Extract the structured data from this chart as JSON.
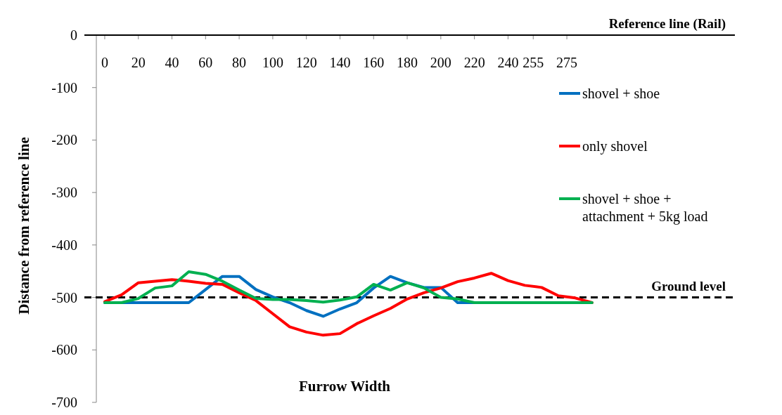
{
  "chart_data": {
    "type": "line",
    "xlabel": "Furrow Width",
    "ylabel": "Distance from reference line",
    "x": [
      0,
      10,
      20,
      30,
      40,
      50,
      60,
      70,
      80,
      90,
      100,
      110,
      120,
      130,
      140,
      150,
      160,
      170,
      180,
      190,
      200,
      210,
      220,
      230,
      240,
      250,
      260,
      270,
      280,
      290
    ],
    "xlim": [
      -5,
      375
    ],
    "xticks": [
      0,
      20,
      40,
      60,
      80,
      100,
      120,
      140,
      160,
      180,
      200,
      220,
      240,
      255,
      275
    ],
    "ylim": [
      -700,
      0
    ],
    "yticks": [
      0,
      -100,
      -200,
      -300,
      -400,
      -500,
      -600,
      -700
    ],
    "series": [
      {
        "name": "shovel + shoe",
        "color": "#0070c0",
        "values": [
          -510,
          -510,
          -510,
          -510,
          -510,
          -510,
          -485,
          -460,
          -460,
          -485,
          -499,
          -510,
          -525,
          -536,
          -522,
          -510,
          -482,
          -460,
          -472,
          -481,
          -481,
          -510,
          -510,
          -510,
          null,
          null,
          null,
          null,
          null,
          null
        ]
      },
      {
        "name": "only shovel",
        "color": "#ff0000",
        "values": [
          -508,
          -495,
          -472,
          -469,
          -466,
          -469,
          -473,
          -475,
          -491,
          -506,
          -531,
          -556,
          -566,
          -572,
          -569,
          -550,
          -535,
          -521,
          -503,
          -491,
          -482,
          -470,
          -463,
          -454,
          -468,
          -477,
          -481,
          -497,
          -501,
          -510
        ]
      },
      {
        "name": "shovel + shoe + attachment + 5kg load",
        "color": "#00b050",
        "values": [
          -510,
          -510,
          -502,
          -482,
          -478,
          -451,
          -456,
          -469,
          -486,
          -502,
          -504,
          -504,
          -506,
          -509,
          -505,
          -499,
          -475,
          -486,
          -472,
          -482,
          -500,
          -503,
          -510,
          -510,
          -510,
          -510,
          -510,
          -510,
          -510,
          -510
        ]
      }
    ],
    "annotations": [
      "Reference line (Rail)"
    ],
    "ref_lines": [
      {
        "axis": "y",
        "value": -500,
        "label": "Ground level",
        "color": "#000000",
        "line_style": "dashed"
      }
    ],
    "legend": "right",
    "grid": false,
    "marker": "none",
    "line_style": "solid"
  }
}
